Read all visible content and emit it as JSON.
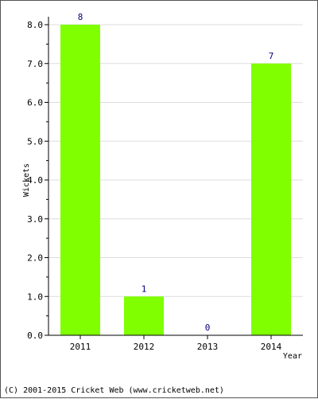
{
  "colors": {
    "bar": "#80ff00",
    "value_label": "#000080",
    "grid": "#dddddd",
    "axis": "#000000"
  },
  "footer": "(C) 2001-2015 Cricket Web (www.cricketweb.net)",
  "chart_data": {
    "type": "bar",
    "categories": [
      "2011",
      "2012",
      "2013",
      "2014"
    ],
    "values": [
      8,
      1,
      0,
      7
    ],
    "value_labels": [
      "8",
      "1",
      "0",
      "7"
    ],
    "title": "",
    "xlabel": "Year",
    "ylabel": "Wickets",
    "ylim": [
      0,
      8
    ],
    "yticks": [
      "0.0",
      "1.0",
      "2.0",
      "3.0",
      "4.0",
      "5.0",
      "6.0",
      "7.0",
      "8.0"
    ],
    "grid": true,
    "legend": "none"
  }
}
